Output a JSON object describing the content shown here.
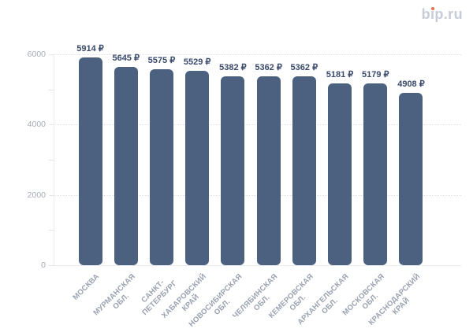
{
  "logo": {
    "part1": "b",
    "dotless_i": "ı",
    "part2": "p.ru",
    "full_text": "bip.ru",
    "text_color": "#c8ccd8",
    "dot_color": "#ec6f4d"
  },
  "chart_data": {
    "type": "bar",
    "title": "",
    "xlabel": "",
    "ylabel": "",
    "categories": [
      "МОСКВА",
      "МУРМАНСКАЯ ОБЛ.",
      "САНКТ-ПЕТЕРБУРГ",
      "ХАБАРОВСКИЙ КРАЙ",
      "НОВОСИБИРСКАЯ ОБЛ.",
      "ЧЕЛЯБИНСКАЯ ОБЛ.",
      "КЕМЕРОВСКАЯ ОБЛ.",
      "АРХАНГЕЛЬСКАЯ ОБЛ.",
      "МОСКОВСКАЯ ОБЛ.",
      "КРАСНОДАРСКИЙ КРАЙ"
    ],
    "category_lines": [
      [
        "МОСКВА"
      ],
      [
        "МУРМАНСКАЯ",
        "ОБЛ."
      ],
      [
        "САНКТ-",
        "ПЕТЕРБУРГ"
      ],
      [
        "ХАБАРОВСКИЙ",
        "КРАЙ"
      ],
      [
        "НОВОСИБИРСКАЯ",
        "ОБЛ."
      ],
      [
        "ЧЕЛЯБИНСКАЯ",
        "ОБЛ."
      ],
      [
        "КЕМЕРОВСКАЯ",
        "ОБЛ."
      ],
      [
        "АРХАНГЕЛЬСКАЯ",
        "ОБЛ."
      ],
      [
        "МОСКОВСКАЯ",
        "ОБЛ."
      ],
      [
        "КРАСНОДАРСКИЙ",
        "КРАЙ"
      ]
    ],
    "values": [
      5914,
      5645,
      5575,
      5529,
      5382,
      5362,
      5362,
      5181,
      5179,
      4908
    ],
    "value_labels": [
      "5914 ₽",
      "5645 ₽",
      "5575 ₽",
      "5529 ₽",
      "5382 ₽",
      "5362 ₽",
      "5362 ₽",
      "5181 ₽",
      "5179 ₽",
      "4908 ₽"
    ],
    "currency_suffix": "₽",
    "ylim": [
      0,
      6000
    ],
    "y_major_ticks": [
      0,
      2000,
      4000,
      6000
    ],
    "y_minor_ticks": [
      1000,
      3000,
      5000
    ],
    "grid_values": [
      2000,
      4000,
      6000
    ],
    "grid": "horizontal dotted",
    "legend_position": "none",
    "bar_color": "#4c6180",
    "value_label_color": "#3a4a6b",
    "y_tick_label_color": "#a6abb8",
    "x_tick_label_color": "#99a0af",
    "grid_color": "#dde1e8",
    "axis_color": "#e9ebf0"
  }
}
